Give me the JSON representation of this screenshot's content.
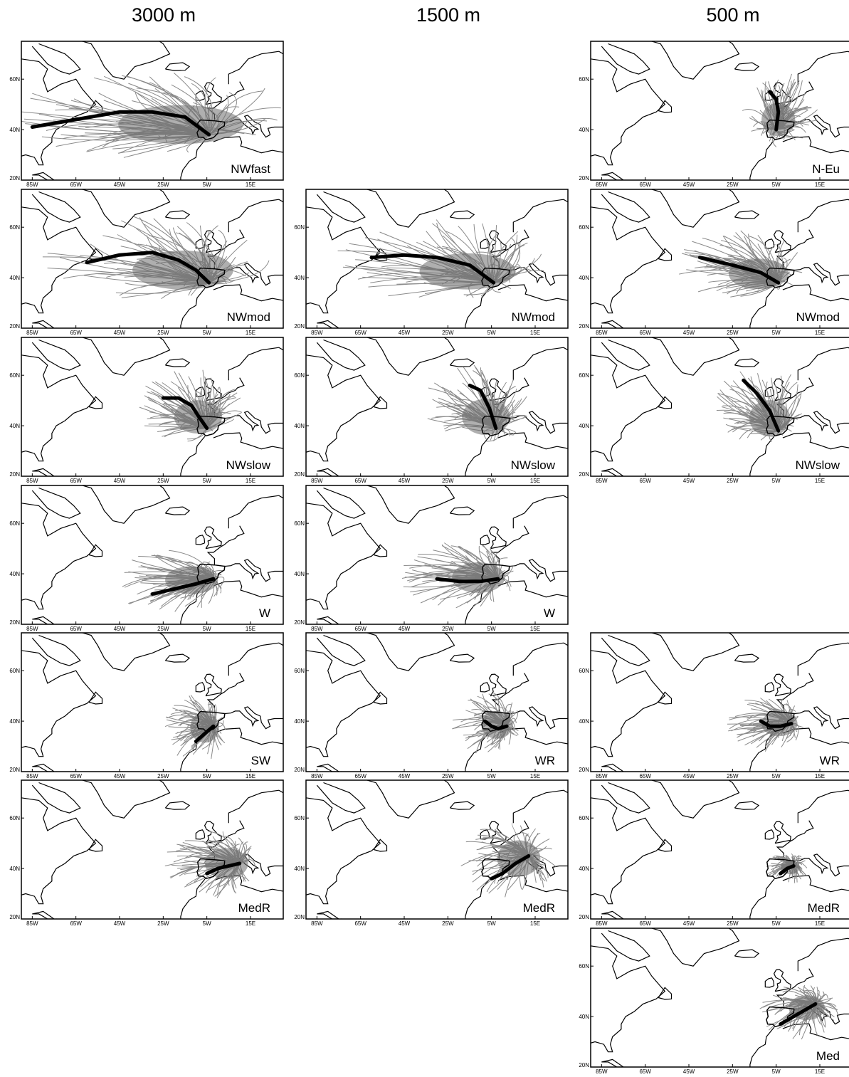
{
  "columns": [
    "3000 m",
    "1500 m",
    "500 m"
  ],
  "axes": {
    "lat_ticks": [
      "20N",
      "40N",
      "60N"
    ],
    "lon_ticks": [
      "85W",
      "65W",
      "45W",
      "25W",
      "5W",
      "15E"
    ]
  },
  "colors": {
    "trajectory": "#8a8a8a",
    "density": "#6e6e6e",
    "centroid": "#000000",
    "coast": "#000000"
  },
  "chart_data": {
    "type": "trajectory-map-panels",
    "lon_range": [
      -90,
      30
    ],
    "lat_range": [
      20,
      75
    ],
    "panels": [
      {
        "col": 0,
        "row": 0,
        "label": "NWfast",
        "centroid": [
          [
            -85,
            41
          ],
          [
            -65,
            44
          ],
          [
            -45,
            47
          ],
          [
            -30,
            47
          ],
          [
            -15,
            45
          ],
          [
            -4,
            38
          ]
        ],
        "blob": [
          -30,
          46,
          52,
          14
        ]
      },
      {
        "col": 0,
        "row": 1,
        "label": "NWmod",
        "centroid": [
          [
            -60,
            46
          ],
          [
            -45,
            49
          ],
          [
            -30,
            50
          ],
          [
            -18,
            47
          ],
          [
            -10,
            43
          ],
          [
            -4,
            38
          ]
        ],
        "blob": [
          -28,
          48,
          42,
          14
        ]
      },
      {
        "col": 0,
        "row": 2,
        "label": "NWslow",
        "centroid": [
          [
            -25,
            51
          ],
          [
            -18,
            51
          ],
          [
            -12,
            48
          ],
          [
            -9,
            44
          ],
          [
            -5,
            39
          ]
        ],
        "blob": [
          -13,
          48,
          20,
          12
        ]
      },
      {
        "col": 0,
        "row": 3,
        "label": "W",
        "centroid": [
          [
            -30,
            32
          ],
          [
            -20,
            34
          ],
          [
            -10,
            36
          ],
          [
            -2,
            38
          ]
        ],
        "blob": [
          -22,
          37,
          22,
          10
        ]
      },
      {
        "col": 0,
        "row": 4,
        "label": "SW",
        "centroid": [
          [
            -10,
            32
          ],
          [
            -6,
            35
          ],
          [
            -2,
            38
          ]
        ],
        "blob": [
          -10,
          37,
          12,
          11
        ]
      },
      {
        "col": 0,
        "row": 5,
        "label": "MedR",
        "centroid": [
          [
            -5,
            38
          ],
          [
            0,
            40
          ],
          [
            5,
            41
          ],
          [
            10,
            42
          ]
        ],
        "blob": [
          -2,
          42,
          18,
          11
        ]
      },
      {
        "col": 1,
        "row": 1,
        "label": "NWmod",
        "centroid": [
          [
            -60,
            48
          ],
          [
            -45,
            49
          ],
          [
            -30,
            48
          ],
          [
            -15,
            45
          ],
          [
            -4,
            38
          ]
        ],
        "blob": [
          -28,
          47,
          40,
          13
        ]
      },
      {
        "col": 1,
        "row": 2,
        "label": "NWslow",
        "centroid": [
          [
            -15,
            56
          ],
          [
            -10,
            54
          ],
          [
            -6,
            47
          ],
          [
            -3,
            39
          ]
        ],
        "blob": [
          -12,
          48,
          20,
          13
        ]
      },
      {
        "col": 1,
        "row": 3,
        "label": "W",
        "centroid": [
          [
            -30,
            38
          ],
          [
            -20,
            37
          ],
          [
            -10,
            37
          ],
          [
            -2,
            38
          ]
        ],
        "blob": [
          -20,
          39,
          22,
          11
        ]
      },
      {
        "col": 1,
        "row": 4,
        "label": "WR",
        "centroid": [
          [
            -8,
            40
          ],
          [
            -5,
            38
          ],
          [
            -2,
            37
          ],
          [
            2,
            38
          ]
        ],
        "blob": [
          -7,
          39,
          13,
          10
        ]
      },
      {
        "col": 1,
        "row": 5,
        "label": "MedR",
        "centroid": [
          [
            -5,
            36
          ],
          [
            0,
            38
          ],
          [
            6,
            42
          ],
          [
            12,
            45
          ]
        ],
        "blob": [
          3,
          43,
          18,
          13
        ]
      },
      {
        "col": 2,
        "row": 0,
        "label": "N-Eu",
        "centroid": [
          [
            -8,
            55
          ],
          [
            -5,
            52
          ],
          [
            -4,
            47
          ],
          [
            -5,
            40
          ]
        ],
        "blob": [
          -3,
          48,
          14,
          12
        ]
      },
      {
        "col": 2,
        "row": 1,
        "label": "NWmod",
        "centroid": [
          [
            -40,
            48
          ],
          [
            -25,
            45
          ],
          [
            -12,
            42
          ],
          [
            -4,
            38
          ]
        ],
        "blob": [
          -22,
          45,
          25,
          11
        ]
      },
      {
        "col": 2,
        "row": 2,
        "label": "NWslow",
        "centroid": [
          [
            -20,
            58
          ],
          [
            -14,
            53
          ],
          [
            -8,
            46
          ],
          [
            -4,
            38
          ]
        ],
        "blob": [
          -12,
          48,
          17,
          13
        ]
      },
      {
        "col": 2,
        "row": 4,
        "label": "WR",
        "centroid": [
          [
            -12,
            40
          ],
          [
            -8,
            38
          ],
          [
            -3,
            38
          ],
          [
            2,
            39
          ]
        ],
        "blob": [
          -9,
          39,
          15,
          9
        ]
      },
      {
        "col": 2,
        "row": 5,
        "label": "MedR",
        "centroid": [
          [
            -3,
            38
          ],
          [
            0,
            40
          ],
          [
            3,
            41
          ]
        ],
        "blob": [
          0,
          40,
          8,
          5
        ]
      },
      {
        "col": 2,
        "row": 6,
        "label": "Med",
        "centroid": [
          [
            -3,
            37
          ],
          [
            5,
            41
          ],
          [
            13,
            45
          ]
        ],
        "blob": [
          5,
          42,
          15,
          9
        ]
      }
    ]
  }
}
